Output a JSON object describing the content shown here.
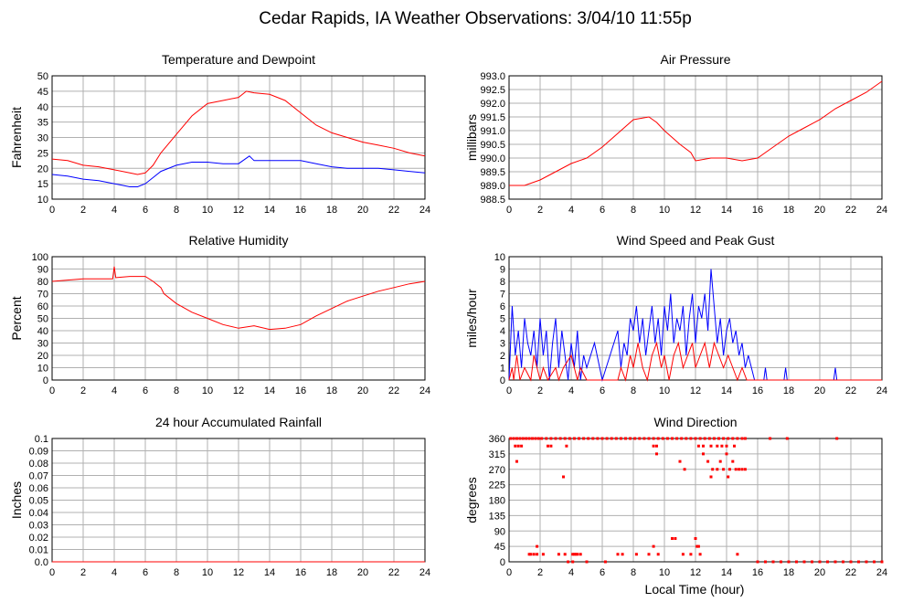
{
  "title": "Cedar Rapids, IA Weather Observations: 3/04/10 11:55p",
  "xlabel_bottom": "Local Time (hour)",
  "colors": {
    "red": "#ff0000",
    "blue": "#0000ff",
    "grid": "#b0b0b0",
    "axis": "#000000"
  },
  "chart_data": [
    {
      "type": "line",
      "title": "Temperature and Dewpoint",
      "ylabel": "Fahrenheit",
      "xlim": [
        0,
        24
      ],
      "ylim": [
        10,
        50
      ],
      "xticks": [
        0,
        2,
        4,
        6,
        8,
        10,
        12,
        14,
        16,
        18,
        20,
        22,
        24
      ],
      "yticks": [
        "10",
        "15",
        "20",
        "25",
        "30",
        "35",
        "40",
        "45",
        "50"
      ],
      "grid": true,
      "series": [
        {
          "color": "red",
          "x": [
            0,
            1,
            2,
            3,
            4,
            5,
            5.5,
            6,
            6.5,
            7,
            8,
            9,
            10,
            11,
            12,
            12.5,
            13,
            14,
            15,
            16,
            17,
            18,
            19,
            20,
            21,
            22,
            23,
            24
          ],
          "y": [
            23,
            22.5,
            21,
            20.5,
            19.5,
            18.5,
            18,
            18.5,
            21,
            25,
            31,
            37,
            41,
            42,
            43,
            45,
            44.5,
            44,
            42,
            38,
            34,
            31.5,
            30,
            28.5,
            27.5,
            26.5,
            25,
            24
          ]
        },
        {
          "color": "blue",
          "x": [
            0,
            1,
            2,
            3,
            4,
            4.5,
            5,
            5.5,
            6,
            6.5,
            7,
            8,
            9,
            10,
            11,
            12,
            12.7,
            13,
            14,
            15,
            16,
            17,
            18,
            19,
            20,
            21,
            22,
            23,
            24
          ],
          "y": [
            18,
            17.5,
            16.5,
            16,
            15,
            14.5,
            14,
            14,
            15,
            17,
            19,
            21,
            22,
            22,
            21.5,
            21.5,
            24,
            22.5,
            22.5,
            22.5,
            22.5,
            21.5,
            20.5,
            20,
            20,
            20,
            19.5,
            19,
            18.5
          ]
        }
      ]
    },
    {
      "type": "line",
      "title": "Air Pressure",
      "ylabel": "millibars",
      "xlim": [
        0,
        24
      ],
      "ylim": [
        988.5,
        993.0
      ],
      "xticks": [
        0,
        2,
        4,
        6,
        8,
        10,
        12,
        14,
        16,
        18,
        20,
        22,
        24
      ],
      "yticks": [
        "988.5",
        "989.0",
        "989.5",
        "990.0",
        "990.5",
        "991.0",
        "991.5",
        "992.0",
        "992.5",
        "993.0"
      ],
      "grid": true,
      "series": [
        {
          "color": "red",
          "x": [
            0,
            1,
            2,
            3,
            4,
            5,
            6,
            7,
            8,
            9,
            9.5,
            10,
            11,
            11.7,
            12,
            13,
            14,
            15,
            16,
            17,
            18,
            19,
            20,
            21,
            22,
            23,
            24
          ],
          "y": [
            989.0,
            989.0,
            989.2,
            989.5,
            989.8,
            990.0,
            990.4,
            990.9,
            991.4,
            991.5,
            991.3,
            991.0,
            990.5,
            990.2,
            989.9,
            990.0,
            990.0,
            989.9,
            990.0,
            990.4,
            990.8,
            991.1,
            991.4,
            991.8,
            992.1,
            992.4,
            992.8
          ]
        }
      ]
    },
    {
      "type": "line",
      "title": "Relative Humidity",
      "ylabel": "Percent",
      "xlim": [
        0,
        24
      ],
      "ylim": [
        0,
        100
      ],
      "xticks": [
        0,
        2,
        4,
        6,
        8,
        10,
        12,
        14,
        16,
        18,
        20,
        22,
        24
      ],
      "yticks": [
        "0",
        "10",
        "20",
        "30",
        "40",
        "50",
        "60",
        "70",
        "80",
        "90",
        "100"
      ],
      "grid": true,
      "series": [
        {
          "color": "red",
          "x": [
            0,
            1,
            2,
            3,
            3.9,
            4,
            4.1,
            5,
            6,
            6.5,
            7,
            7.2,
            8,
            9,
            10,
            11,
            12,
            13,
            14,
            15,
            16,
            17,
            18,
            19,
            20,
            21,
            22,
            23,
            24
          ],
          "y": [
            80,
            81,
            82,
            82,
            82,
            92,
            83,
            84,
            84,
            80,
            75,
            70,
            62,
            55,
            50,
            45,
            42,
            44,
            41,
            42,
            45,
            52,
            58,
            64,
            68,
            72,
            75,
            78,
            80
          ]
        }
      ]
    },
    {
      "type": "line",
      "title": "Wind Speed and Peak Gust",
      "ylabel": "miles/hour",
      "xlim": [
        0,
        24
      ],
      "ylim": [
        0,
        10
      ],
      "xticks": [
        0,
        2,
        4,
        6,
        8,
        10,
        12,
        14,
        16,
        18,
        20,
        22,
        24
      ],
      "yticks": [
        "0",
        "1",
        "2",
        "3",
        "4",
        "5",
        "6",
        "7",
        "8",
        "9",
        "10"
      ],
      "grid": true,
      "series": [
        {
          "color": "blue",
          "x": [
            0,
            0.2,
            0.4,
            0.6,
            0.8,
            1.0,
            1.2,
            1.4,
            1.6,
            1.8,
            2.0,
            2.2,
            2.4,
            2.6,
            2.8,
            3.0,
            3.2,
            3.4,
            3.6,
            3.8,
            4.0,
            4.2,
            4.4,
            4.6,
            4.8,
            5.0,
            5.5,
            6.0,
            6.5,
            7.0,
            7.2,
            7.4,
            7.6,
            7.8,
            8.0,
            8.2,
            8.4,
            8.6,
            8.8,
            9.0,
            9.2,
            9.4,
            9.6,
            9.8,
            10.0,
            10.2,
            10.4,
            10.6,
            10.8,
            11.0,
            11.2,
            11.4,
            11.6,
            11.8,
            12.0,
            12.2,
            12.4,
            12.6,
            12.8,
            13.0,
            13.2,
            13.4,
            13.6,
            13.8,
            14.0,
            14.2,
            14.4,
            14.6,
            14.8,
            15.0,
            15.2,
            15.4,
            15.6,
            15.8,
            16.0,
            16.4,
            16.5,
            16.6,
            17.0,
            17.7,
            17.8,
            17.9,
            18.5,
            20.9,
            21.0,
            21.1,
            22,
            24
          ],
          "y": [
            0,
            6,
            2,
            4,
            1,
            5,
            3,
            2,
            4,
            1,
            5,
            2,
            4,
            0,
            3,
            5,
            1,
            4,
            2,
            0,
            3,
            1,
            4,
            0,
            2,
            1,
            3,
            0,
            2,
            4,
            1,
            3,
            2,
            5,
            4,
            6,
            3,
            5,
            2,
            4,
            6,
            3,
            5,
            2,
            6,
            4,
            7,
            3,
            5,
            4,
            6,
            2,
            5,
            7,
            3,
            6,
            5,
            7,
            4,
            9,
            6,
            3,
            5,
            2,
            4,
            5,
            3,
            4,
            2,
            3,
            1,
            2,
            1,
            0,
            0,
            0,
            1,
            0,
            0,
            0,
            1,
            0,
            0,
            0,
            1,
            0,
            0,
            0
          ]
        },
        {
          "color": "red",
          "x": [
            0,
            0.2,
            0.3,
            0.5,
            0.7,
            1.0,
            1.4,
            1.6,
            1.8,
            2.0,
            2.2,
            2.5,
            3.0,
            3.2,
            3.5,
            4.0,
            4.4,
            4.6,
            5.0,
            5.5,
            6.0,
            7.0,
            7.2,
            7.5,
            7.8,
            8.0,
            8.3,
            8.6,
            8.9,
            9.2,
            9.5,
            9.8,
            10.0,
            10.3,
            10.6,
            10.9,
            11.2,
            11.5,
            11.8,
            12.0,
            12.3,
            12.6,
            12.9,
            13.2,
            13.5,
            13.8,
            14.1,
            14.4,
            14.7,
            15.0,
            15.3,
            15.6,
            16.0,
            24
          ],
          "y": [
            0,
            1,
            0,
            2,
            0,
            1,
            0,
            2,
            1,
            0,
            1,
            0,
            1,
            0,
            1,
            2,
            0,
            1,
            0,
            0,
            0,
            0,
            1,
            0,
            2,
            1,
            3,
            1,
            0,
            2,
            3,
            1,
            2,
            0,
            2,
            3,
            1,
            2,
            3,
            1,
            2,
            3,
            1,
            3,
            2,
            1,
            2,
            1,
            0,
            1,
            0,
            0,
            0,
            0
          ]
        }
      ]
    },
    {
      "type": "line",
      "title": "24 hour Accumulated Rainfall",
      "ylabel": "Inches",
      "xlim": [
        0,
        24
      ],
      "ylim": [
        0,
        0.1
      ],
      "xticks": [
        0,
        2,
        4,
        6,
        8,
        10,
        12,
        14,
        16,
        18,
        20,
        22,
        24
      ],
      "yticks": [
        "0.0",
        "0.01",
        "0.02",
        "0.03",
        "0.04",
        "0.05",
        "0.06",
        "0.07",
        "0.08",
        "0.09",
        "0.1"
      ],
      "grid": true,
      "series": [
        {
          "color": "red",
          "x": [
            0,
            24
          ],
          "y": [
            0,
            0
          ]
        }
      ]
    },
    {
      "type": "scatter",
      "title": "Wind Direction",
      "ylabel": "degrees",
      "xlim": [
        0,
        24
      ],
      "ylim": [
        0,
        360
      ],
      "xticks": [
        0,
        2,
        4,
        6,
        8,
        10,
        12,
        14,
        16,
        18,
        20,
        22,
        24
      ],
      "yticks": [
        "0",
        "45",
        "90",
        "135",
        "180",
        "225",
        "270",
        "315",
        "360"
      ],
      "grid": true,
      "series": [
        {
          "color": "red",
          "x": [
            0.1,
            0.3,
            0.5,
            0.7,
            0.9,
            1.1,
            1.3,
            1.5,
            1.7,
            1.9,
            2.1,
            2.4,
            2.7,
            3.0,
            3.3,
            3.6,
            3.9,
            4.2,
            4.5,
            4.8,
            5.1,
            5.4,
            5.7,
            6.0,
            6.3,
            6.6,
            6.9,
            7.2,
            7.5,
            7.8,
            8.1,
            8.4,
            8.7,
            9.0,
            9.3,
            9.6,
            9.9,
            10.2,
            10.5,
            10.8,
            11.1,
            11.4,
            11.7,
            12.0,
            12.3,
            12.6,
            12.9,
            13.2,
            13.5,
            13.8,
            14.1,
            14.4,
            14.7,
            15.0,
            15.2,
            0.4,
            0.6,
            0.8,
            2.5,
            2.7,
            3.7,
            9.3,
            9.5,
            12.2,
            12.5,
            13.0,
            13.4,
            13.7,
            14.0,
            14.5,
            0.5,
            9.5,
            11.0,
            12.5,
            12.8,
            13.1,
            13.4,
            13.6,
            13.8,
            14.0,
            14.2,
            14.4,
            14.6,
            14.8,
            15.0,
            15.2,
            11.3,
            13.0,
            14.1,
            3.5,
            1.3,
            1.4,
            1.6,
            1.8,
            2.2,
            3.2,
            3.6,
            4.1,
            4.2,
            4.4,
            4.6,
            7.0,
            7.3,
            8.2,
            9.0,
            9.6,
            11.2,
            11.7,
            12.3,
            14.7,
            1.8,
            9.3,
            12.1,
            10.5,
            10.7,
            12.0,
            12.2,
            3.8,
            4.1,
            4.3,
            5.0,
            6.2,
            16.0,
            16.5,
            17.0,
            17.5,
            18.0,
            18.5,
            19.0,
            19.5,
            20.0,
            20.5,
            21.0,
            21.5,
            22.0,
            22.5,
            23.0,
            23.5,
            24.0,
            16.8,
            17.9,
            21.1
          ],
          "y": [
            360,
            360,
            360,
            360,
            360,
            360,
            360,
            360,
            360,
            360,
            360,
            360,
            360,
            360,
            360,
            360,
            360,
            360,
            360,
            360,
            360,
            360,
            360,
            360,
            360,
            360,
            360,
            360,
            360,
            360,
            360,
            360,
            360,
            360,
            360,
            360,
            360,
            360,
            360,
            360,
            360,
            360,
            360,
            360,
            360,
            360,
            360,
            360,
            360,
            360,
            360,
            360,
            360,
            360,
            360,
            338,
            338,
            338,
            338,
            338,
            338,
            338,
            338,
            338,
            338,
            338,
            338,
            338,
            338,
            338,
            293,
            315,
            293,
            315,
            293,
            270,
            270,
            293,
            270,
            315,
            270,
            293,
            270,
            270,
            270,
            270,
            270,
            248,
            248,
            248,
            22,
            22,
            22,
            22,
            22,
            22,
            22,
            22,
            22,
            22,
            22,
            22,
            22,
            22,
            22,
            22,
            22,
            22,
            22,
            22,
            45,
            45,
            45,
            68,
            68,
            68,
            45,
            0,
            0,
            22,
            0,
            0,
            0,
            0,
            0,
            0,
            0,
            0,
            0,
            0,
            0,
            0,
            0,
            0,
            0,
            0,
            0,
            0,
            0,
            360,
            360,
            360
          ]
        }
      ]
    }
  ]
}
